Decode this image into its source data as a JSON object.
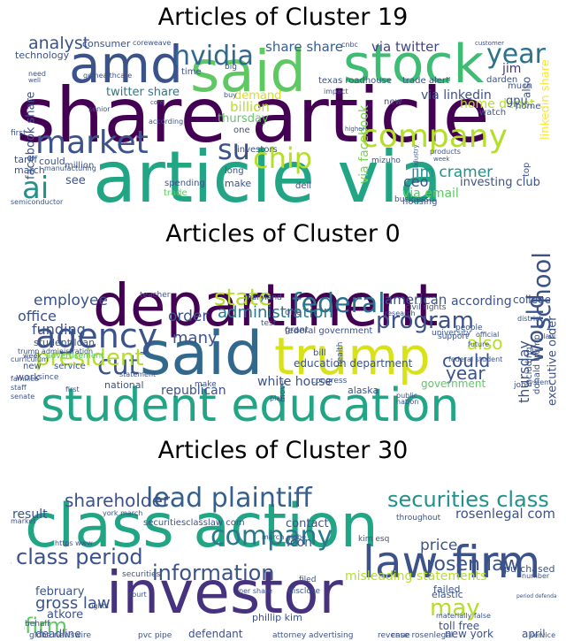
{
  "charts": [
    {
      "title": "Articles of Cluster 19",
      "type": "wordcloud",
      "words": [
        {
          "t": "share article",
          "c": "#440154",
          "r": 1
        },
        {
          "t": "article via",
          "c": "#21a585",
          "r": 1
        },
        {
          "t": "said",
          "c": "#5ec962",
          "r": 1
        },
        {
          "t": "stock",
          "c": "#3fbc73",
          "r": 1
        },
        {
          "t": "amd",
          "c": "#3b528b",
          "r": 1
        },
        {
          "t": "market",
          "c": "#3b528b",
          "r": 1
        },
        {
          "t": "company",
          "c": "#b5de2b",
          "r": 1
        },
        {
          "t": "nvidia",
          "c": "#31688e",
          "r": 1
        },
        {
          "t": "year",
          "c": "#2c728e",
          "r": 1
        },
        {
          "t": "ai",
          "c": "#21918c",
          "r": 1
        },
        {
          "t": "su",
          "c": "#3b528b",
          "r": 1
        },
        {
          "t": "chip",
          "c": "#b5de2b",
          "r": 1
        },
        {
          "t": "analyst",
          "c": "#3b528b",
          "r": 1
        },
        {
          "t": "share share",
          "c": "#355f8d",
          "r": 1
        },
        {
          "t": "via twitter",
          "c": "#414487",
          "r": 1
        },
        {
          "t": "jim cramer",
          "c": "#21918c",
          "r": 1
        },
        {
          "t": "facebook share",
          "c": "#3b528b",
          "r": -1
        },
        {
          "t": "via facebook",
          "c": "#7ad151",
          "r": -1
        },
        {
          "t": "twitter share",
          "c": "#2a788e",
          "r": 1
        },
        {
          "t": "ceo",
          "c": "#3b528b",
          "r": 1
        },
        {
          "t": "thursday",
          "c": "#5ec962",
          "r": 1
        },
        {
          "t": "billion",
          "c": "#b5de2b",
          "r": 1
        },
        {
          "t": "jim",
          "c": "#46327e",
          "r": 1
        },
        {
          "t": "via linkedin",
          "c": "#3b528b",
          "r": 1
        },
        {
          "t": "home depot",
          "c": "#b5de2b",
          "r": 1
        },
        {
          "t": "also",
          "c": "#3b528b",
          "r": -1
        },
        {
          "t": "via email",
          "c": "#5ec962",
          "r": 1
        },
        {
          "t": "investing club",
          "c": "#3b528b",
          "r": 1
        },
        {
          "t": "consumer",
          "c": "#3b528b",
          "r": 1
        },
        {
          "t": "technology",
          "c": "#3b528b",
          "r": 1
        },
        {
          "t": "linkedin share",
          "c": "#fde725",
          "r": -1
        },
        {
          "t": "texas roadhouse",
          "c": "#3b528b",
          "r": 1
        },
        {
          "t": "trade alert",
          "c": "#3b528b",
          "r": 1
        },
        {
          "t": "demand",
          "c": "#d8e219",
          "r": 1
        },
        {
          "t": "see",
          "c": "#3b528b",
          "r": 1
        },
        {
          "t": "tariff",
          "c": "#3b528b",
          "r": 1
        },
        {
          "t": "march",
          "c": "#3b528b",
          "r": 1
        },
        {
          "t": "could",
          "c": "#3b528b",
          "r": 1
        },
        {
          "t": "one",
          "c": "#3b528b",
          "r": 1
        },
        {
          "t": "investors",
          "c": "#3b528b",
          "r": 1
        },
        {
          "t": "spending",
          "c": "#3b528b",
          "r": 1
        },
        {
          "t": "make",
          "c": "#3b528b",
          "r": 1
        },
        {
          "t": "time",
          "c": "#3b528b",
          "r": 1
        },
        {
          "t": "new",
          "c": "#3b528b",
          "r": 1
        },
        {
          "t": "gpu",
          "c": "#3b528b",
          "r": 1
        },
        {
          "t": "top",
          "c": "#3b528b",
          "r": -1
        },
        {
          "t": "million",
          "c": "#3b528b",
          "r": 1
        },
        {
          "t": "housing",
          "c": "#3b528b",
          "r": 1
        },
        {
          "t": "trade",
          "c": "#5ec962",
          "r": 1
        },
        {
          "t": "dell",
          "c": "#3b528b",
          "r": 1
        },
        {
          "t": "business",
          "c": "#3b528b",
          "r": 1
        },
        {
          "t": "semiconductor",
          "c": "#3b528b",
          "r": 1
        },
        {
          "t": "first",
          "c": "#3b528b",
          "r": 1
        },
        {
          "t": "long",
          "c": "#3b528b",
          "r": 1
        },
        {
          "t": "watch",
          "c": "#3b528b",
          "r": 1
        },
        {
          "t": "home",
          "c": "#3b528b",
          "r": 1
        },
        {
          "t": "much",
          "c": "#3b528b",
          "r": 1
        },
        {
          "t": "darden",
          "c": "#3b528b",
          "r": 1
        },
        {
          "t": "coreweave",
          "c": "#3b528b",
          "r": 1
        },
        {
          "t": "cnbc",
          "c": "#3b528b",
          "r": 1
        },
        {
          "t": "need",
          "c": "#3b528b",
          "r": 1
        },
        {
          "t": "senior",
          "c": "#3b528b",
          "r": 1
        },
        {
          "t": "buy",
          "c": "#3b528b",
          "r": 1
        },
        {
          "t": "according",
          "c": "#3b528b",
          "r": 1
        },
        {
          "t": "big",
          "c": "#3b528b",
          "r": 1
        },
        {
          "t": "impact",
          "c": "#3b528b",
          "r": 1
        },
        {
          "t": "mizuho",
          "c": "#3b528b",
          "r": 1
        },
        {
          "t": "products",
          "c": "#3b528b",
          "r": 1
        },
        {
          "t": "manufacturing",
          "c": "#3b528b",
          "r": 1
        },
        {
          "t": "customer",
          "c": "#3b528b",
          "r": 1
        },
        {
          "t": "ge healthcare",
          "c": "#3b528b",
          "r": 1
        },
        {
          "t": "well",
          "c": "#3b528b",
          "r": 1
        },
        {
          "t": "core",
          "c": "#3b528b",
          "r": 1
        },
        {
          "t": "industry",
          "c": "#3b528b",
          "r": -1
        },
        {
          "t": "week",
          "c": "#3b528b",
          "r": 1
        },
        {
          "t": "higher",
          "c": "#3b528b",
          "r": 1
        }
      ]
    },
    {
      "title": "Articles of Cluster 0",
      "type": "wordcloud",
      "words": [
        {
          "t": "department",
          "c": "#440154",
          "r": 1
        },
        {
          "t": "student education",
          "c": "#21a585",
          "r": 1
        },
        {
          "t": "said",
          "c": "#31688e",
          "r": 1
        },
        {
          "t": "trump",
          "c": "#d8e219",
          "r": 1
        },
        {
          "t": "agency",
          "c": "#3b528b",
          "r": 1
        },
        {
          "t": "federal",
          "c": "#2c728e",
          "r": 1
        },
        {
          "t": "school",
          "c": "#3b528b",
          "r": -1
        },
        {
          "t": "program",
          "c": "#3b528b",
          "r": 1
        },
        {
          "t": "cut",
          "c": "#3b528b",
          "r": 1
        },
        {
          "t": "state",
          "c": "#b5de2b",
          "r": 1
        },
        {
          "t": "employee",
          "c": "#3b528b",
          "r": 1
        },
        {
          "t": "president",
          "c": "#b5de2b",
          "r": 1
        },
        {
          "t": "office",
          "c": "#3b528b",
          "r": 1
        },
        {
          "t": "funding",
          "c": "#3b528b",
          "r": 1
        },
        {
          "t": "administration",
          "c": "#2a788e",
          "r": 1
        },
        {
          "t": "would",
          "c": "#3b528b",
          "r": -1
        },
        {
          "t": "many",
          "c": "#3b528b",
          "r": 1
        },
        {
          "t": "order",
          "c": "#3b528b",
          "r": 1
        },
        {
          "t": "could",
          "c": "#3b528b",
          "r": 1
        },
        {
          "t": "year",
          "c": "#3b528b",
          "r": 1
        },
        {
          "t": "also",
          "c": "#b5de2b",
          "r": 1
        },
        {
          "t": "american",
          "c": "#3b528b",
          "r": 1
        },
        {
          "t": "according",
          "c": "#3b528b",
          "r": 1
        },
        {
          "t": "college",
          "c": "#3b528b",
          "r": 1
        },
        {
          "t": "thursday",
          "c": "#3b528b",
          "r": -1
        },
        {
          "t": "executive order",
          "c": "#3b528b",
          "r": -1
        },
        {
          "t": "republican",
          "c": "#3b528b",
          "r": 1
        },
        {
          "t": "white house",
          "c": "#3b528b",
          "r": 1
        },
        {
          "t": "government",
          "c": "#5ec962",
          "r": 1
        },
        {
          "t": "education department",
          "c": "#3b528b",
          "r": 1
        },
        {
          "t": "student loan",
          "c": "#3b528b",
          "r": 1
        },
        {
          "t": "new",
          "c": "#3b528b",
          "r": 1
        },
        {
          "t": "service",
          "c": "#3b528b",
          "r": 1
        },
        {
          "t": "work",
          "c": "#3b528b",
          "r": 1
        },
        {
          "t": "national",
          "c": "#3b528b",
          "r": 1
        },
        {
          "t": "one",
          "c": "#3b528b",
          "r": 1
        },
        {
          "t": "grant",
          "c": "#3b528b",
          "r": 1
        },
        {
          "t": "federal government",
          "c": "#3b528b",
          "r": 1
        },
        {
          "t": "teacher",
          "c": "#3b528b",
          "r": 1
        },
        {
          "t": "donald trump",
          "c": "#3b528b",
          "r": -1
        },
        {
          "t": "including",
          "c": "#3b528b",
          "r": -1
        },
        {
          "t": "civil rights",
          "c": "#3b528b",
          "r": 1
        },
        {
          "t": "people",
          "c": "#3b528b",
          "r": 1
        },
        {
          "t": "advertisement",
          "c": "#5ec962",
          "r": 1
        },
        {
          "t": "trump administration",
          "c": "#3b528b",
          "r": 1
        },
        {
          "t": "curriculum",
          "c": "#3b528b",
          "r": 1
        },
        {
          "t": "support",
          "c": "#3b528b",
          "r": 1
        },
        {
          "t": "university",
          "c": "#3b528b",
          "r": 1
        },
        {
          "t": "job",
          "c": "#3b528b",
          "r": 1
        },
        {
          "t": "system",
          "c": "#3b528b",
          "r": 1
        },
        {
          "t": "alaska",
          "c": "#3b528b",
          "r": 1
        },
        {
          "t": "make",
          "c": "#3b528b",
          "r": 1
        },
        {
          "t": "since",
          "c": "#3b528b",
          "r": 1
        },
        {
          "t": "bill",
          "c": "#3b528b",
          "r": 1
        },
        {
          "t": "congress",
          "c": "#3b528b",
          "r": 1
        },
        {
          "t": "move",
          "c": "#3b528b",
          "r": -1
        },
        {
          "t": "senate",
          "c": "#3b528b",
          "r": 1
        },
        {
          "t": "first",
          "c": "#3b528b",
          "r": 1
        },
        {
          "t": "families",
          "c": "#3b528b",
          "r": 1
        },
        {
          "t": "week",
          "c": "#3b528b",
          "r": 1
        },
        {
          "t": "maryland",
          "c": "#3b528b",
          "r": 1
        },
        {
          "t": "test",
          "c": "#3b528b",
          "r": 1
        },
        {
          "t": "public",
          "c": "#3b528b",
          "r": 1
        },
        {
          "t": "research",
          "c": "#3b528b",
          "r": 1
        },
        {
          "t": "nation",
          "c": "#3b528b",
          "r": 1
        },
        {
          "t": "district",
          "c": "#3b528b",
          "r": 1
        },
        {
          "t": "law",
          "c": "#3b528b",
          "r": 1
        },
        {
          "t": "official",
          "c": "#3b528b",
          "r": 1
        },
        {
          "t": "future",
          "c": "#3b528b",
          "r": 1
        },
        {
          "t": "staff",
          "c": "#3b528b",
          "r": 1
        },
        {
          "t": "plan",
          "c": "#3b528b",
          "r": 1
        },
        {
          "t": "federal student",
          "c": "#3b528b",
          "r": 1
        },
        {
          "t": "statement",
          "c": "#3b528b",
          "r": 1
        },
        {
          "t": "health",
          "c": "#3b528b",
          "r": -1
        }
      ]
    },
    {
      "title": "Articles of Cluster 30",
      "type": "wordcloud",
      "words": [
        {
          "t": "class action",
          "c": "#21a585",
          "r": 1
        },
        {
          "t": "investor",
          "c": "#46327e",
          "r": 1
        },
        {
          "t": "law firm",
          "c": "#3b528b",
          "r": 1
        },
        {
          "t": "lead plaintiff",
          "c": "#355f8d",
          "r": 1
        },
        {
          "t": "company",
          "c": "#2a788e",
          "r": 1
        },
        {
          "t": "class period",
          "c": "#3b528b",
          "r": 1
        },
        {
          "t": "information",
          "c": "#3b528b",
          "r": 1
        },
        {
          "t": "securities class",
          "c": "#21918c",
          "r": 1
        },
        {
          "t": "shareholder",
          "c": "#3b528b",
          "r": 1
        },
        {
          "t": "rosen law",
          "c": "#3b528b",
          "r": 1
        },
        {
          "t": "may",
          "c": "#b5de2b",
          "r": 1
        },
        {
          "t": "firm",
          "c": "#5ec962",
          "r": 1
        },
        {
          "t": "rosenlegal com",
          "c": "#3b528b",
          "r": 1
        },
        {
          "t": "gross law",
          "c": "#3b528b",
          "r": 1
        },
        {
          "t": "result",
          "c": "#3b528b",
          "r": 1
        },
        {
          "t": "contact",
          "c": "#3b528b",
          "r": 1
        },
        {
          "t": "icon",
          "c": "#3b528b",
          "r": 1
        },
        {
          "t": "price",
          "c": "#3b528b",
          "r": 1
        },
        {
          "t": "misleading statements",
          "c": "#b5de2b",
          "r": 1
        },
        {
          "t": "february",
          "c": "#3b528b",
          "r": 1
        },
        {
          "t": "atkore",
          "c": "#3b528b",
          "r": 1
        },
        {
          "t": "heydude",
          "c": "#3b528b",
          "r": -1
        },
        {
          "t": "deadline",
          "c": "#3b528b",
          "r": 1
        },
        {
          "t": "defendant",
          "c": "#3b528b",
          "r": 1
        },
        {
          "t": "toll free",
          "c": "#3b528b",
          "r": 1
        },
        {
          "t": "new york",
          "c": "#3b528b",
          "r": 1
        },
        {
          "t": "april",
          "c": "#3b528b",
          "r": 1
        },
        {
          "t": "purchased",
          "c": "#3b528b",
          "r": 1
        },
        {
          "t": "elastic",
          "c": "#3b528b",
          "r": 1
        },
        {
          "t": "failed",
          "c": "#3b528b",
          "r": 1
        },
        {
          "t": "globe newswire",
          "c": "#3b528b",
          "r": 1
        },
        {
          "t": "phillip kim",
          "c": "#3b528b",
          "r": 1
        },
        {
          "t": "securitiesclasslaw com",
          "c": "#3b528b",
          "r": 1
        },
        {
          "t": "york march",
          "c": "#3b528b",
          "r": 1
        },
        {
          "t": "throughout",
          "c": "#3b528b",
          "r": 1
        },
        {
          "t": "march globe",
          "c": "#3b528b",
          "r": 1
        },
        {
          "t": "kim esq",
          "c": "#3b528b",
          "r": 1
        },
        {
          "t": "https www",
          "c": "#3b528b",
          "r": 1
        },
        {
          "t": "securities",
          "c": "#3b528b",
          "r": 1
        },
        {
          "t": "filed",
          "c": "#3b528b",
          "r": 1
        },
        {
          "t": "per share",
          "c": "#3b528b",
          "r": 1
        },
        {
          "t": "disclose",
          "c": "#3b528b",
          "r": 1
        },
        {
          "t": "behalf",
          "c": "#3b528b",
          "r": 1
        },
        {
          "t": "court",
          "c": "#3b528b",
          "r": 1
        },
        {
          "t": "rights",
          "c": "#3b528b",
          "r": 1
        },
        {
          "t": "pvc pipe",
          "c": "#3b528b",
          "r": 1
        },
        {
          "t": "attorney advertising",
          "c": "#3b528b",
          "r": 1
        },
        {
          "t": "revenue",
          "c": "#3b528b",
          "r": 1
        },
        {
          "t": "case",
          "c": "#3b528b",
          "r": -1
        },
        {
          "t": "market",
          "c": "#3b528b",
          "r": 1
        },
        {
          "t": "number",
          "c": "#3b528b",
          "r": 1
        },
        {
          "t": "service",
          "c": "#3b528b",
          "r": 1
        },
        {
          "t": "period defendants",
          "c": "#3b528b",
          "r": 1
        },
        {
          "t": "materially false",
          "c": "#3b528b",
          "r": 1
        },
        {
          "t": "case rosenlegal",
          "c": "#3b528b",
          "r": 1
        }
      ]
    }
  ]
}
